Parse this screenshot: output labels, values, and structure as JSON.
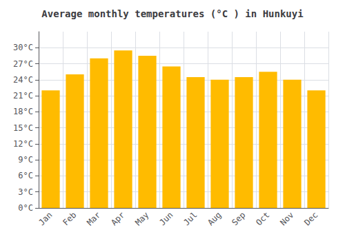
{
  "chart_data": {
    "type": "bar",
    "title": "Average monthly temperatures (°C ) in Hunkuyi",
    "categories": [
      "Jan",
      "Feb",
      "Mar",
      "Apr",
      "May",
      "Jun",
      "Jul",
      "Aug",
      "Sep",
      "Oct",
      "Nov",
      "Dec"
    ],
    "values": [
      22.0,
      25.0,
      28.0,
      29.5,
      28.5,
      26.5,
      24.5,
      24.0,
      24.5,
      25.5,
      24.0,
      22.0
    ],
    "color": "#FFBB00",
    "ylim": [
      0,
      33
    ],
    "yticks": [
      {
        "value": 0,
        "label": "0°C"
      },
      {
        "value": 3,
        "label": "3°C"
      },
      {
        "value": 6,
        "label": "6°C"
      },
      {
        "value": 9,
        "label": "9°C"
      },
      {
        "value": 12,
        "label": "12°C"
      },
      {
        "value": 15,
        "label": "15°C"
      },
      {
        "value": 18,
        "label": "18°C"
      },
      {
        "value": 21,
        "label": "21°C"
      },
      {
        "value": 24,
        "label": "24°C"
      },
      {
        "value": 27,
        "label": "27°C"
      },
      {
        "value": 30,
        "label": "30°C"
      }
    ],
    "grid": true
  }
}
